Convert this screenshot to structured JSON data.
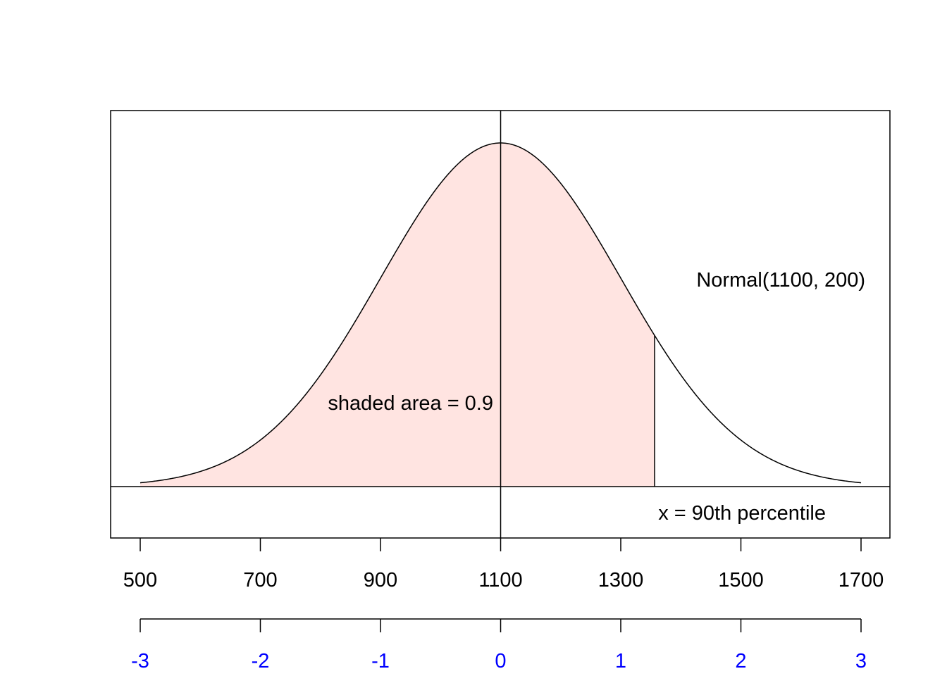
{
  "chart_data": {
    "type": "area",
    "distribution": "normal",
    "mean": 1100,
    "sd": 200,
    "xlim": [
      500,
      1700
    ],
    "shaded_upper_bound": 1356.31,
    "shaded_area": 0.9,
    "curve_label": "Normal(1100, 200)",
    "area_label": "shaded area = 0.9",
    "x_marker_label": "x = 90th percentile",
    "x_ticks": [
      500,
      700,
      900,
      1100,
      1300,
      1500,
      1700
    ],
    "x_tick_labels": [
      "500",
      "700",
      "900",
      "1100",
      "1300",
      "1500",
      "1700"
    ],
    "z_ticks": [
      -3,
      -2,
      -1,
      0,
      1,
      2,
      3
    ],
    "z_tick_labels": [
      "-3",
      "-2",
      "-1",
      "0",
      "1",
      "2",
      "3"
    ],
    "colors": {
      "shade": "#FFE4E1",
      "z_axis": "#0000FF",
      "line": "#000000"
    }
  }
}
